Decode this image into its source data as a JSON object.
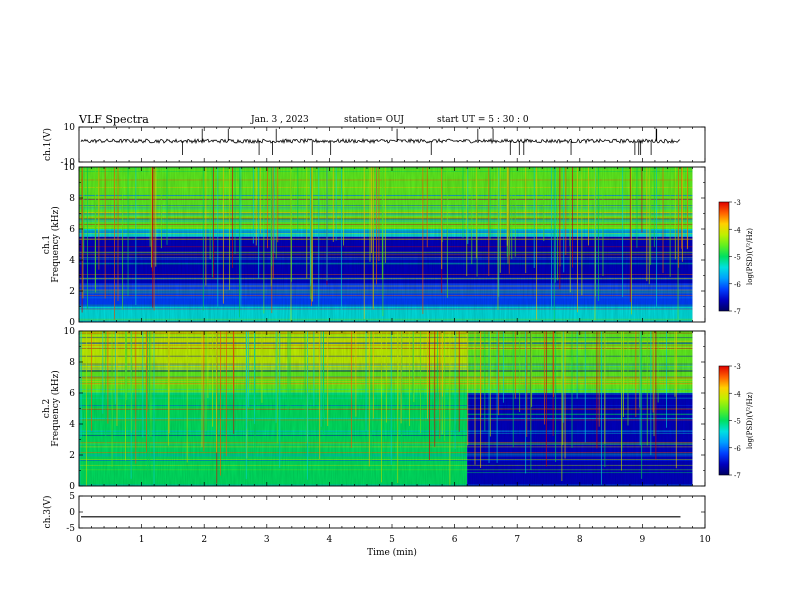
{
  "header": {
    "title": "VLF Spectra",
    "date": "Jan. 3 , 2023",
    "station": "station= OUJ",
    "start_ut": "start UT = 5 : 30 : 0"
  },
  "colors": {
    "scale": [
      "#000060",
      "#0000c0",
      "#0040ff",
      "#00a0ff",
      "#00e0e0",
      "#00e060",
      "#60f020",
      "#c0f000",
      "#ffd000",
      "#ff6000",
      "#e00000"
    ],
    "trace": "#000000"
  },
  "chart_data": [
    {
      "type": "line",
      "name": "ch.1 waveform",
      "ylabel": "ch.1(V)",
      "ylim": [
        -10,
        10
      ],
      "yticks": [
        "10",
        "-10"
      ],
      "baseline": 2,
      "xlim": [
        0,
        10
      ]
    },
    {
      "type": "heatmap",
      "name": "ch.1 spectrogram",
      "ylabel_channel": "ch.1",
      "ylabel": "Frequency (kHz)",
      "ylim": [
        0,
        10
      ],
      "yticks": [
        "0",
        "2",
        "4",
        "6",
        "8",
        "10"
      ],
      "xlim": [
        0,
        9.8
      ],
      "colorbar": {
        "label": "log(PSD)(V²/Hz)",
        "range": [
          -7,
          -3
        ],
        "ticks": [
          "-3",
          "-4",
          "-5",
          "-6",
          "-7"
        ]
      },
      "bands": [
        {
          "from_khz": 6.0,
          "to_khz": 10.0,
          "log_psd": -4.8
        },
        {
          "from_khz": 5.5,
          "to_khz": 6.0,
          "log_psd": -5.3
        },
        {
          "from_khz": 2.5,
          "to_khz": 5.5,
          "log_psd": -6.6
        },
        {
          "from_khz": 1.0,
          "to_khz": 2.5,
          "log_psd": -6.3
        },
        {
          "from_khz": 0.0,
          "to_khz": 1.0,
          "log_psd": -5.6
        }
      ]
    },
    {
      "type": "heatmap",
      "name": "ch.2 spectrogram",
      "ylabel_channel": "ch.2",
      "ylabel": "Frequency (kHz)",
      "ylim": [
        0,
        10
      ],
      "yticks": [
        "0",
        "2",
        "4",
        "6",
        "8",
        "10"
      ],
      "xlim": [
        0,
        9.8
      ],
      "transition_min": 6.2,
      "colorbar": {
        "label": "log(PSD)(V²/Hz)",
        "range": [
          -7,
          -3
        ],
        "ticks": [
          "-3",
          "-4",
          "-5",
          "-6",
          "-7"
        ]
      },
      "bands_before": [
        {
          "from_khz": 7.5,
          "to_khz": 10.0,
          "log_psd": -4.2
        },
        {
          "from_khz": 6.0,
          "to_khz": 7.5,
          "log_psd": -4.6
        },
        {
          "from_khz": 4.0,
          "to_khz": 6.0,
          "log_psd": -5.2
        },
        {
          "from_khz": 0.0,
          "to_khz": 4.0,
          "log_psd": -5.0
        }
      ],
      "bands_after": [
        {
          "from_khz": 6.0,
          "to_khz": 10.0,
          "log_psd": -4.4
        },
        {
          "from_khz": 0.0,
          "to_khz": 6.0,
          "log_psd": -6.4
        }
      ]
    },
    {
      "type": "line",
      "name": "ch.3 waveform",
      "ylabel": "ch.3(V)",
      "ylim": [
        -5,
        5
      ],
      "yticks": [
        "5",
        "0",
        "-5"
      ],
      "constant": -1.5,
      "xlim": [
        0,
        10
      ]
    }
  ],
  "x_axis": {
    "label": "Time (min)",
    "ticks": [
      "0",
      "1",
      "2",
      "3",
      "4",
      "5",
      "6",
      "7",
      "8",
      "9",
      "10"
    ]
  }
}
